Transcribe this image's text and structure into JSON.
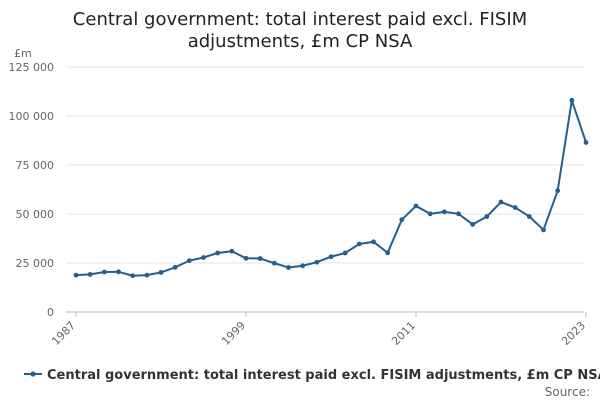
{
  "chart_data": {
    "type": "line",
    "title_line1": "Central government: total interest paid excl. FISIM",
    "title_line2": "adjustments, £m CP NSA",
    "ylabel": "£m",
    "ylim": [
      0,
      125000
    ],
    "yticks": [
      0,
      25000,
      50000,
      75000,
      100000,
      125000
    ],
    "ytick_labels": [
      "0",
      "25 000",
      "50 000",
      "75 000",
      "100 000",
      "125 000"
    ],
    "xlim": [
      1987,
      2023
    ],
    "xticks": [
      "1987",
      "1999",
      "2011",
      "2023"
    ],
    "grid": true,
    "legend_position": "bottom",
    "color": "#206095",
    "series": [
      {
        "name": "Central government: total interest paid excl. FISIM adjustments, £m CP NSA",
        "x": [
          1987,
          1988,
          1989,
          1990,
          1991,
          1992,
          1993,
          1994,
          1995,
          1996,
          1997,
          1998,
          1999,
          2000,
          2001,
          2002,
          2003,
          2004,
          2005,
          2006,
          2007,
          2008,
          2009,
          2010,
          2011,
          2012,
          2013,
          2014,
          2015,
          2016,
          2017,
          2018,
          2019,
          2020,
          2021,
          2022,
          2023
        ],
        "values": [
          18800,
          19200,
          20400,
          20500,
          18500,
          18800,
          20200,
          22800,
          26200,
          27800,
          30100,
          31000,
          27400,
          27300,
          24900,
          22700,
          23600,
          25400,
          28200,
          30100,
          34700,
          35800,
          30200,
          47100,
          54100,
          50100,
          51100,
          50100,
          44700,
          48700,
          56100,
          53300,
          48700,
          41900,
          61900,
          108000,
          86500
        ]
      }
    ],
    "source_label": "Source:"
  }
}
